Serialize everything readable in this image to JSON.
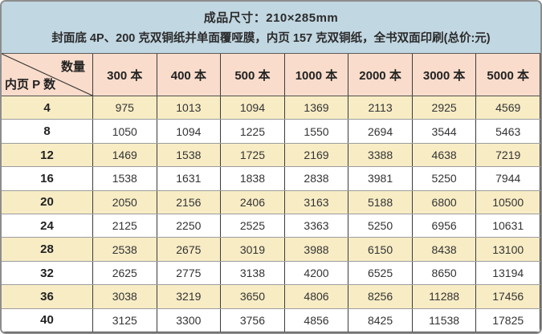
{
  "header": {
    "line1": "成品尺寸：210×285mm",
    "line2": "封面底 4P、200 克双铜纸并单面覆哑膜，内页 157 克双铜纸，全书双面印刷(总价:元)"
  },
  "table": {
    "corner": {
      "top_right": "数量",
      "bottom_left": "内页 P 数"
    },
    "columns": [
      "300 本",
      "400 本",
      "500 本",
      "1000 本",
      "2000 本",
      "3000 本",
      "5000 本"
    ],
    "rows": [
      {
        "pages": "4",
        "prices": [
          "975",
          "1013",
          "1094",
          "1369",
          "2113",
          "2925",
          "4569"
        ]
      },
      {
        "pages": "8",
        "prices": [
          "1050",
          "1094",
          "1225",
          "1550",
          "2694",
          "3544",
          "5463"
        ]
      },
      {
        "pages": "12",
        "prices": [
          "1469",
          "1538",
          "1725",
          "2169",
          "3388",
          "4638",
          "7219"
        ]
      },
      {
        "pages": "16",
        "prices": [
          "1538",
          "1631",
          "1838",
          "2838",
          "3981",
          "5250",
          "7944"
        ]
      },
      {
        "pages": "20",
        "prices": [
          "2050",
          "2156",
          "2406",
          "3163",
          "5188",
          "6800",
          "10500"
        ]
      },
      {
        "pages": "24",
        "prices": [
          "2125",
          "2250",
          "2525",
          "3363",
          "5250",
          "6956",
          "10631"
        ]
      },
      {
        "pages": "28",
        "prices": [
          "2538",
          "2675",
          "3019",
          "3988",
          "6150",
          "8438",
          "13100"
        ]
      },
      {
        "pages": "32",
        "prices": [
          "2625",
          "2775",
          "3138",
          "4200",
          "6525",
          "8650",
          "13194"
        ]
      },
      {
        "pages": "36",
        "prices": [
          "3038",
          "3219",
          "3650",
          "4806",
          "8256",
          "11288",
          "17456"
        ]
      },
      {
        "pages": "40",
        "prices": [
          "3125",
          "3300",
          "3756",
          "4856",
          "8425",
          "11538",
          "17825"
        ]
      }
    ]
  },
  "colors": {
    "header_blue": "#c1d7e2",
    "header_pink": "#f9dccb",
    "row_yellow": "#f8ecc5",
    "frame": "#8d8d8d"
  }
}
